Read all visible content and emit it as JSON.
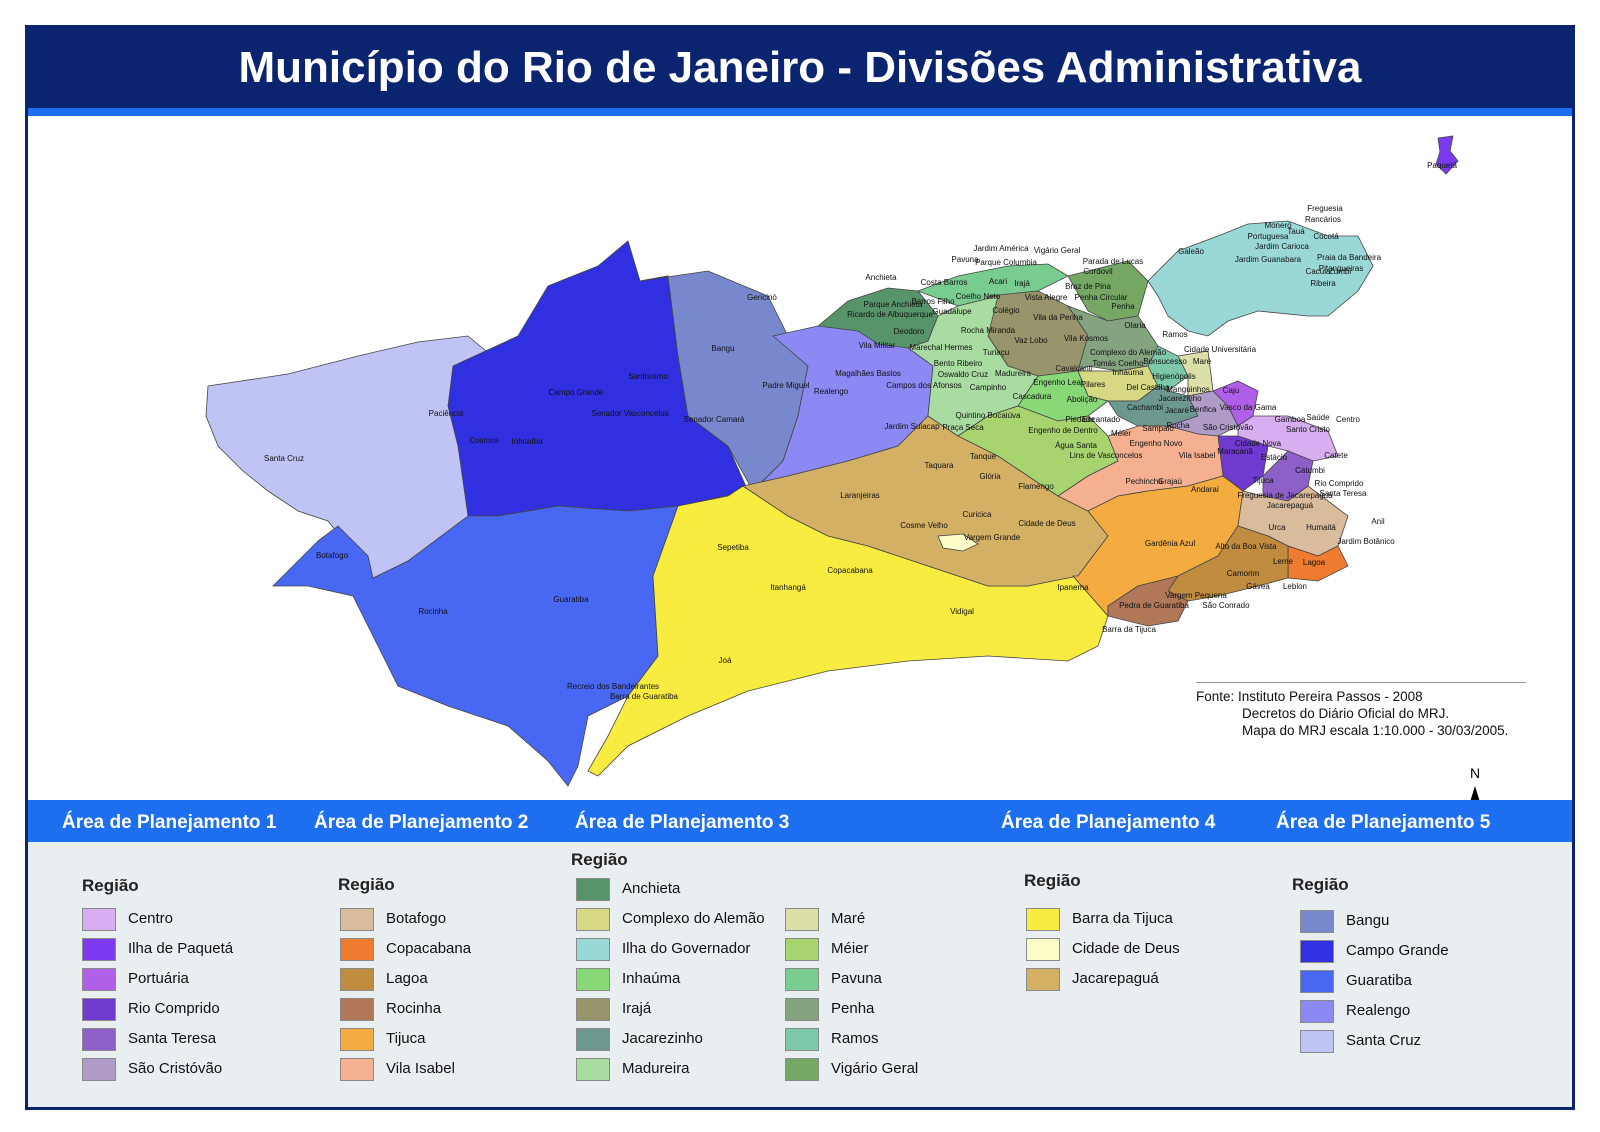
{
  "title": "Município do Rio de Janeiro - Divisões Administrativa",
  "source": {
    "line1": "Fonte: Instituto Pereira Passos - 2008",
    "line2": "Decretos do Diário Oficial do MRJ.",
    "line3": "Mapa do MRJ escala 1:10.000 - 30/03/2005."
  },
  "north_label": "N",
  "planning_areas": [
    "Área de Planejamento 1",
    "Área de Planejamento 2",
    "Área de Planejamento 3",
    "Área de Planejamento 4",
    "Área de Planejamento 5"
  ],
  "region_heading": "Região",
  "legend": {
    "ap1": [
      {
        "label": "Centro",
        "color": "#d7aef0"
      },
      {
        "label": "Ilha de Paquetá",
        "color": "#7b3af0"
      },
      {
        "label": "Portuária",
        "color": "#b060e8"
      },
      {
        "label": "Rio Comprido",
        "color": "#6e3ad0"
      },
      {
        "label": "Santa Teresa",
        "color": "#8c60c8"
      },
      {
        "label": "São Cristóvão",
        "color": "#b09cc8"
      }
    ],
    "ap2": [
      {
        "label": "Botafogo",
        "color": "#d8bc9c"
      },
      {
        "label": "Copacabana",
        "color": "#ee7b30"
      },
      {
        "label": "Lagoa",
        "color": "#c08c40"
      },
      {
        "label": "Rocinha",
        "color": "#b07858"
      },
      {
        "label": "Tijuca",
        "color": "#f4ac40"
      },
      {
        "label": "Vila Isabel",
        "color": "#f4b090"
      }
    ],
    "ap3_left": [
      {
        "label": "Anchieta",
        "color": "#58946a"
      },
      {
        "label": "Complexo do Alemão",
        "color": "#d6d884"
      },
      {
        "label": "Ilha do Governador",
        "color": "#9ad8d8"
      },
      {
        "label": "Inhaúma",
        "color": "#88d878"
      },
      {
        "label": "Irajá",
        "color": "#98946c"
      },
      {
        "label": "Jacarezinho",
        "color": "#6c9890"
      },
      {
        "label": "Madureira",
        "color": "#a8dca0"
      }
    ],
    "ap3_right": [
      {
        "label": "Maré",
        "color": "#dce0a8"
      },
      {
        "label": "Méier",
        "color": "#a8d470"
      },
      {
        "label": "Pavuna",
        "color": "#78cc90"
      },
      {
        "label": "Penha",
        "color": "#84a480"
      },
      {
        "label": "Ramos",
        "color": "#7cc8a8"
      },
      {
        "label": "Vigário Geral",
        "color": "#74a864"
      }
    ],
    "ap4": [
      {
        "label": "Barra da Tijuca",
        "color": "#f8ec40"
      },
      {
        "label": "Cidade de Deus",
        "color": "#fcfcc8"
      },
      {
        "label": "Jacarepaguá",
        "color": "#d4b064"
      }
    ],
    "ap5": [
      {
        "label": "Bangu",
        "color": "#7888cc"
      },
      {
        "label": "Campo Grande",
        "color": "#3030e0"
      },
      {
        "label": "Guaratiba",
        "color": "#4868f4"
      },
      {
        "label": "Realengo",
        "color": "#8c88f4"
      },
      {
        "label": "Santa Cruz",
        "color": "#c0c4f4"
      }
    ]
  },
  "map_labels": [
    "Paquetá",
    "Freguesia",
    "Rancários",
    "Moneró",
    "Portuguesa",
    "Tauá",
    "Cocotá",
    "Jardim Carioca",
    "Galeão",
    "Praia da Bandeira",
    "Jardim Guanabara",
    "Pitangueiras",
    "Cacuia",
    "Zumbi",
    "Ribeira",
    "Jardim América",
    "Vigário Geral",
    "Pavuna",
    "Parque Columbia",
    "Parada de Lucas",
    "Cordovil",
    "Anchieta",
    "Costa Barros",
    "Acari",
    "Irajá",
    "Braz de Pina",
    "Barros Filho",
    "Coelho Neto",
    "Vista Alegre",
    "Penha Circular",
    "Guadalupe",
    "Colégio",
    "Penha",
    "Parque Anchieta",
    "Ricardo de Albuquerque",
    "Vila da Penha",
    "Olaria",
    "Rocha Miranda",
    "Ramos",
    "Gericinó",
    "Deodoro",
    "Vaz Lobo",
    "Vila Kosmos",
    "Complexo do Alemão",
    "Cidade Universitária",
    "Vila Militar",
    "Marechal Hermes",
    "Turiaçu",
    "Tomás Coelho",
    "Bonsucesso",
    "Maré",
    "Bangu",
    "Bento Ribeiro",
    "Cavalcanti",
    "Inhaúma",
    "Higienópolis",
    "Magalhães Bastos",
    "Oswaldo Cruz",
    "Madureira",
    "Engenho Leal",
    "Pilares",
    "Del Castilho",
    "Manguinhos",
    "Caju",
    "Santíssimo",
    "Padre Miguel",
    "Realengo",
    "Campos dos Afonsos",
    "Campinho",
    "Cascadura",
    "Abolição",
    "Jacarezinho",
    "Benfica",
    "Vasco da Gama",
    "Campo Grande",
    "Senador Vasconcelos",
    "Senador Camará",
    "Quintino Bocaiúva",
    "Piedade",
    "Encantado",
    "Cachambi",
    "Jacaré",
    "Gamboa",
    "Saúde",
    "Centro",
    "Paciência",
    "Jardim Sulacap",
    "Praça Seca",
    "Engenho de Dentro",
    "Méier",
    "Sampaio",
    "Rocha",
    "São Cristóvão",
    "Santo Cristo",
    "Cosmos",
    "Inhoaíba",
    "Água Santa",
    "Engenho Novo",
    "Cidade Nova",
    "Santa Cruz",
    "Tanque",
    "Lins de Vasconcelos",
    "Vila Isabel",
    "Maracanã",
    "Estácio",
    "Taquara",
    "Catumbi",
    "Catete",
    "Glória",
    "Pechincha",
    "Grajaú",
    "Andaraí",
    "Tijuca",
    "Rio Comprido",
    "Flamengo",
    "Freguesia de Jacarepaguá",
    "Santa Teresa",
    "Laranjeiras",
    "Jacarepaguá",
    "Cosme Velho",
    "Curicica",
    "Cidade de Deus",
    "Anil",
    "Urca",
    "Humaitá",
    "Botafogo",
    "Sepetiba",
    "Vargem Grande",
    "Gardênia Azul",
    "Alto da Boa Vista",
    "Jardim Botânico",
    "Leme",
    "Lagoa",
    "Copacabana",
    "Camorim",
    "Gávea",
    "Leblon",
    "Ipanema",
    "Itanhangá",
    "Vargem Pequena",
    "Guaratiba",
    "Rocinha",
    "Pedra de Guaratiba",
    "São Conrado",
    "Vidigal",
    "Barra da Tijuca",
    "Joá",
    "Recreio dos Bandeirantes",
    "Barra de Guaratiba",
    "Grumari"
  ]
}
